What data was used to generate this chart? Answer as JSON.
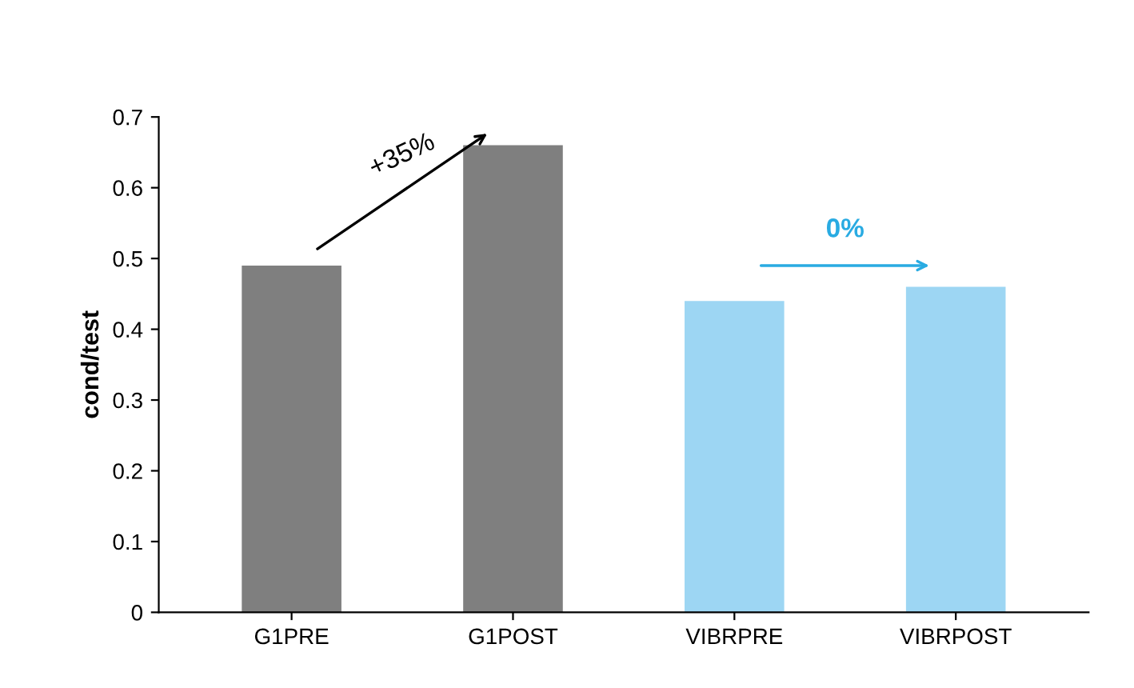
{
  "chart_data": {
    "type": "bar",
    "ylabel": "cond/test",
    "categories": [
      "G1PRE",
      "G1POST",
      "VIBRPRE",
      "VIBRPOST"
    ],
    "values": [
      0.49,
      0.66,
      0.44,
      0.46
    ],
    "colors": [
      "#7f7f7f",
      "#7f7f7f",
      "#9dd6f3",
      "#9dd6f3"
    ],
    "ylim": [
      0,
      0.7
    ],
    "yticks": [
      0,
      0.1,
      0.2,
      0.3,
      0.4,
      0.5,
      0.6,
      0.7
    ],
    "annotations": [
      "+35%",
      "0%"
    ],
    "grid": false,
    "legend": false
  }
}
